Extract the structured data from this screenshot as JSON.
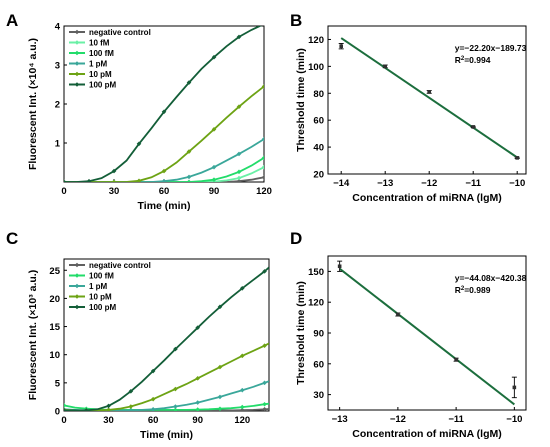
{
  "colors": {
    "negative control": "#606060",
    "10 fM": "#6af0a6",
    "100 fM": "#22dc6a",
    "1 pM": "#3aa79a",
    "10 pM": "#6da314",
    "100 pM": "#135e38",
    "fit_line": "#1c6e3d",
    "point": "#303030"
  },
  "chart_data": [
    {
      "panel": "A",
      "type": "line",
      "xlabel": "Time (min)",
      "ylabel": "Fluorescent Int. (×10⁴ a.u.)",
      "xlim": [
        0,
        120
      ],
      "ylim": [
        0,
        4
      ],
      "xticks": [
        0,
        30,
        60,
        90,
        120
      ],
      "yticks": [
        1,
        2,
        3,
        4
      ],
      "legend_position": "top-left",
      "x": [
        0,
        7.5,
        15,
        22.5,
        30,
        37.5,
        45,
        52.5,
        60,
        67.5,
        75,
        82.5,
        90,
        97.5,
        105,
        112.5,
        120
      ],
      "series": [
        {
          "name": "negative control",
          "values": [
            0,
            0,
            0,
            0,
            0,
            0,
            0,
            0,
            0,
            0,
            0,
            0,
            0,
            0,
            0.02,
            0.06,
            0.12
          ]
        },
        {
          "name": "10 fM",
          "values": [
            0,
            0,
            0,
            0,
            0,
            0,
            0,
            0,
            0,
            0,
            0,
            0,
            0.01,
            0.04,
            0.1,
            0.22,
            0.38
          ]
        },
        {
          "name": "100 fM",
          "values": [
            0,
            0,
            0,
            0,
            0,
            0,
            0,
            0,
            0,
            0,
            0,
            0.02,
            0.06,
            0.14,
            0.26,
            0.42,
            0.62
          ]
        },
        {
          "name": "1 pM",
          "values": [
            0,
            0,
            0,
            0,
            0,
            0,
            0,
            0,
            0.02,
            0.06,
            0.13,
            0.24,
            0.38,
            0.55,
            0.72,
            0.9,
            1.1
          ]
        },
        {
          "name": "10 pM",
          "values": [
            0,
            0,
            0,
            0,
            0,
            0,
            0.03,
            0.12,
            0.28,
            0.5,
            0.78,
            1.06,
            1.35,
            1.65,
            1.93,
            2.2,
            2.45
          ]
        },
        {
          "name": "100 pM",
          "values": [
            0,
            0,
            0.02,
            0.1,
            0.28,
            0.55,
            0.98,
            1.38,
            1.8,
            2.18,
            2.55,
            2.9,
            3.2,
            3.48,
            3.72,
            3.9,
            4.05
          ]
        }
      ]
    },
    {
      "panel": "B",
      "type": "scatter",
      "xlabel": "Concentration of miRNA (lgM)",
      "ylabel": "Threshold time (min)",
      "xlim": [
        -14.3,
        -9.8
      ],
      "ylim": [
        20,
        130
      ],
      "xticks": [
        -14,
        -13,
        -12,
        -11,
        -10
      ],
      "yticks": [
        20,
        40,
        60,
        80,
        100,
        120
      ],
      "points": [
        {
          "x": -14,
          "y": 115,
          "err": 2
        },
        {
          "x": -13,
          "y": 100,
          "err": 1
        },
        {
          "x": -12,
          "y": 81,
          "err": 1
        },
        {
          "x": -11,
          "y": 55,
          "err": 0.5
        },
        {
          "x": -10,
          "y": 32,
          "err": 0.5
        }
      ],
      "fit": {
        "slope": -22.2,
        "intercept": -189.73,
        "x_range": [
          -14,
          -10
        ]
      },
      "equation": "y=−22.20x−189.73",
      "r2_label": "R",
      "r2_value": "=0.994"
    },
    {
      "panel": "C",
      "type": "line",
      "xlabel": "Time (min)",
      "ylabel": "Fluorescent Int. (×10³ a.u.)",
      "xlim": [
        0,
        138
      ],
      "ylim": [
        0,
        27
      ],
      "xticks": [
        0,
        30,
        60,
        90,
        120
      ],
      "yticks": [
        0,
        5,
        10,
        15,
        20,
        25
      ],
      "legend_position": "top-left",
      "x": [
        0,
        7.5,
        15,
        22.5,
        30,
        37.5,
        45,
        52.5,
        60,
        67.5,
        75,
        82.5,
        90,
        97.5,
        105,
        112.5,
        120,
        127.5,
        135,
        138
      ],
      "series": [
        {
          "name": "negative control",
          "values": [
            0.2,
            0.1,
            0.1,
            0.1,
            0.1,
            0.1,
            0.1,
            0.1,
            0.1,
            0.1,
            0.1,
            0.1,
            0.1,
            0.1,
            0.1,
            0.1,
            0.15,
            0.2,
            0.3,
            0.35
          ]
        },
        {
          "name": "100 fM",
          "values": [
            1,
            0.6,
            0.4,
            0.3,
            0.2,
            0.2,
            0.2,
            0.2,
            0.2,
            0.2,
            0.2,
            0.2,
            0.25,
            0.3,
            0.4,
            0.5,
            0.7,
            0.9,
            1.2,
            1.3
          ]
        },
        {
          "name": "1 pM",
          "values": [
            0.3,
            0.2,
            0.1,
            0.1,
            0.1,
            0.1,
            0.1,
            0.2,
            0.3,
            0.5,
            0.8,
            1.1,
            1.5,
            2,
            2.5,
            3.1,
            3.7,
            4.3,
            5,
            5.3
          ]
        },
        {
          "name": "10 pM",
          "values": [
            0.2,
            0.1,
            0.1,
            0.1,
            0.2,
            0.4,
            0.8,
            1.4,
            2.1,
            3,
            3.9,
            4.8,
            5.8,
            6.8,
            7.8,
            8.8,
            9.8,
            10.7,
            11.6,
            12
          ]
        },
        {
          "name": "100 pM",
          "values": [
            0.1,
            0.1,
            0.1,
            0.3,
            0.9,
            2,
            3.5,
            5.2,
            7.1,
            9,
            11,
            12.9,
            14.8,
            16.7,
            18.5,
            20.2,
            21.8,
            23.3,
            24.8,
            25.5
          ]
        }
      ]
    },
    {
      "panel": "D",
      "type": "scatter",
      "xlabel": "Concentration of miRNA (lgM)",
      "ylabel": "Threshold time (min)",
      "xlim": [
        -13.2,
        -9.8
      ],
      "ylim": [
        15,
        165
      ],
      "xticks": [
        -13,
        -12,
        -11,
        -10
      ],
      "yticks": [
        30,
        60,
        90,
        120,
        150
      ],
      "points": [
        {
          "x": -13,
          "y": 155,
          "err": 5
        },
        {
          "x": -12,
          "y": 108,
          "err": 1.5
        },
        {
          "x": -11,
          "y": 64,
          "err": 1.5
        },
        {
          "x": -10,
          "y": 37,
          "err": 10
        }
      ],
      "fit": {
        "slope": -44.08,
        "intercept": -420.38,
        "x_range": [
          -13,
          -10
        ]
      },
      "equation": "y=−44.08x−420.38",
      "r2_label": "R",
      "r2_value": "=0.989"
    }
  ]
}
